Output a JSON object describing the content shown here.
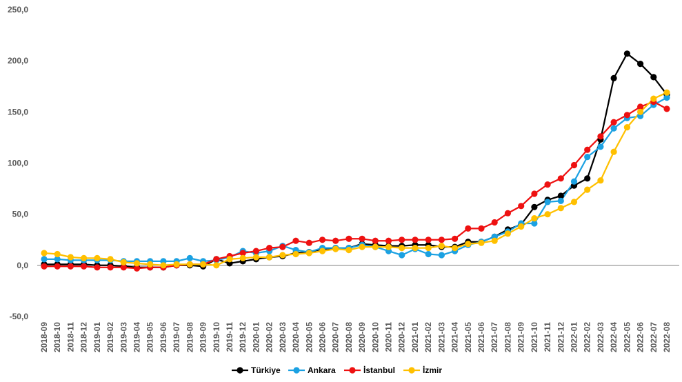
{
  "chart_data": {
    "type": "line",
    "title": "",
    "xlabel": "",
    "ylabel": "",
    "ylim": [
      -50,
      250
    ],
    "yticks": [
      -50,
      0,
      50,
      100,
      150,
      200,
      250
    ],
    "ytick_labels": [
      "-50,0",
      "0,0",
      "50,0",
      "100,0",
      "150,0",
      "200,0",
      "250,0"
    ],
    "grid": false,
    "legend_position": "bottom",
    "categories": [
      "2018-09",
      "2018-10",
      "2018-11",
      "2018-12",
      "2019-01",
      "2019-02",
      "2019-03",
      "2019-04",
      "2019-05",
      "2019-06",
      "2019-07",
      "2019-08",
      "2019-09",
      "2019-10",
      "2019-11",
      "2019-12",
      "2020-01",
      "2020-02",
      "2020-03",
      "2020-04",
      "2020-05",
      "2020-06",
      "2020-07",
      "2020-08",
      "2020-09",
      "2020-10",
      "2020-11",
      "2020-12",
      "2021-01",
      "2021-02",
      "2021-03",
      "2021-04",
      "2021-05",
      "2021-06",
      "2021-07",
      "2021-08",
      "2021-09",
      "2021-10",
      "2021-11",
      "2021-12",
      "2022-01",
      "2022-02",
      "2022-03",
      "2022-04",
      "2022-05",
      "2022-06",
      "2022-07",
      "2022-08"
    ],
    "series": [
      {
        "name": "Türkiye",
        "color": "#000000",
        "values": [
          1,
          1,
          1,
          1,
          0,
          0,
          -1,
          -2,
          -2,
          -2,
          0,
          0,
          -1,
          6,
          2,
          4,
          6,
          8,
          9,
          12,
          13,
          16,
          17,
          17,
          21,
          20,
          19,
          19,
          20,
          20,
          18,
          18,
          23,
          23,
          28,
          35,
          40,
          57,
          64,
          68,
          78,
          85,
          123,
          183,
          207,
          197,
          184,
          167
        ]
      },
      {
        "name": "Ankara",
        "color": "#1BA1E2",
        "values": [
          6,
          6,
          5,
          5,
          5,
          5,
          4,
          4,
          4,
          4,
          4,
          7,
          4,
          5,
          8,
          14,
          12,
          14,
          19,
          15,
          13,
          17,
          17,
          17,
          20,
          18,
          14,
          10,
          16,
          11,
          10,
          14,
          20,
          23,
          28,
          33,
          41,
          41,
          62,
          63,
          82,
          106,
          116,
          134,
          144,
          146,
          157,
          164
        ]
      },
      {
        "name": "İstanbul",
        "color": "#EE1111",
        "values": [
          -1,
          -1,
          -1,
          -1,
          -2,
          -2,
          -2,
          -3,
          -2,
          -2,
          0,
          1,
          1,
          6,
          9,
          12,
          14,
          17,
          18,
          24,
          22,
          25,
          24,
          26,
          26,
          24,
          24,
          25,
          25,
          25,
          25,
          26,
          36,
          36,
          42,
          51,
          58,
          70,
          79,
          85,
          98,
          113,
          126,
          140,
          147,
          155,
          160,
          153
        ]
      },
      {
        "name": "İzmir",
        "color": "#FFC000",
        "values": [
          12,
          11,
          8,
          7,
          7,
          6,
          3,
          2,
          1,
          0,
          1,
          1,
          1,
          0,
          6,
          7,
          8,
          8,
          10,
          11,
          12,
          14,
          16,
          15,
          18,
          18,
          18,
          17,
          17,
          17,
          19,
          17,
          21,
          22,
          24,
          31,
          38,
          46,
          50,
          56,
          62,
          74,
          83,
          111,
          135,
          150,
          163,
          169
        ]
      }
    ]
  }
}
